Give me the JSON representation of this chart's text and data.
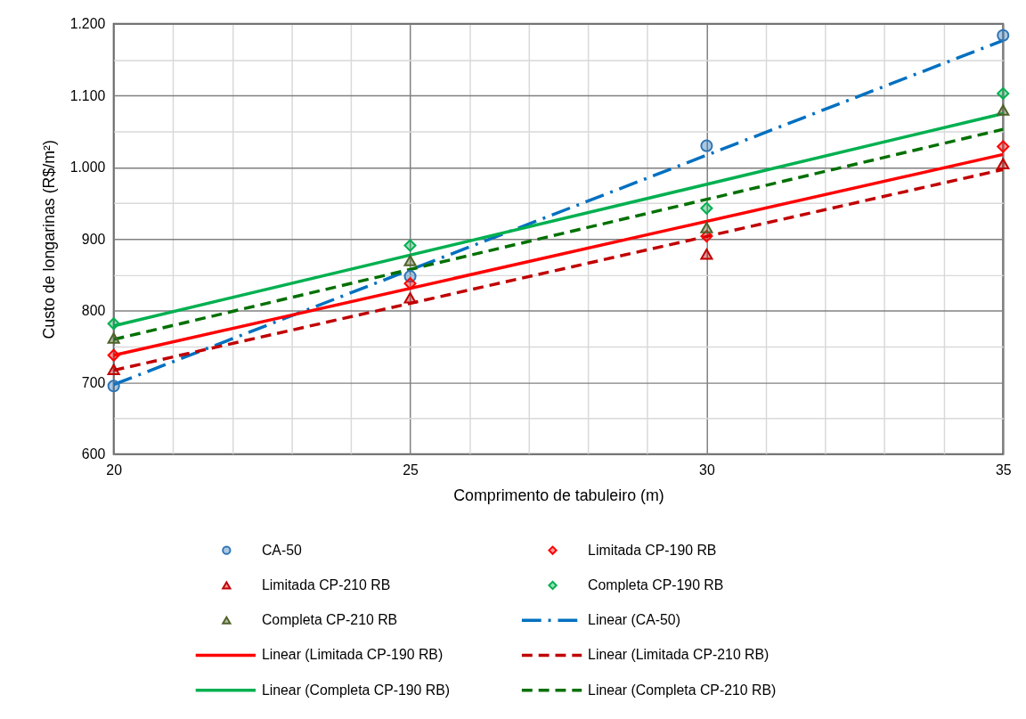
{
  "chart_data": {
    "type": "scatter",
    "xlabel": "Comprimento de tabuleiro (m)",
    "ylabel": "Custo de longarinas (R$/m²)",
    "xlim": [
      20,
      35
    ],
    "ylim": [
      600,
      1200
    ],
    "xticks": [
      20,
      {
        "value": 21,
        "label": null
      },
      {
        "value": 22,
        "label": null
      },
      {
        "value": 23,
        "label": null
      },
      {
        "value": 24,
        "label": null
      },
      25,
      {
        "value": 26,
        "label": null
      },
      {
        "value": 27,
        "label": null
      },
      {
        "value": 28,
        "label": null
      },
      {
        "value": 29,
        "label": null
      },
      30,
      {
        "value": 31,
        "label": null
      },
      {
        "value": 32,
        "label": null
      },
      {
        "value": 33,
        "label": null
      },
      {
        "value": 34,
        "label": null
      },
      35
    ],
    "yticks": [
      600,
      {
        "value": 650,
        "label": null
      },
      700,
      {
        "value": 750,
        "label": null
      },
      800,
      {
        "value": 850,
        "label": null
      },
      900,
      {
        "value": 950,
        "label": null
      },
      {
        "value": 1000,
        "label": "1.000"
      },
      {
        "value": 1050,
        "label": null
      },
      {
        "value": 1100,
        "label": "1.100"
      },
      {
        "value": 1150,
        "label": null
      },
      {
        "value": 1200,
        "label": "1.200"
      }
    ],
    "grid": true,
    "legend": "bottom",
    "series": [
      {
        "name": "CA-50",
        "marker": "circle",
        "color": "#2e75b6",
        "x": [
          20,
          25,
          30,
          35
        ],
        "values": [
          695,
          848,
          1030,
          1184
        ]
      },
      {
        "name": "Limitada CP-190 RB",
        "marker": "diamond",
        "color": "#ff0000",
        "x": [
          20,
          25,
          30,
          35
        ],
        "values": [
          738,
          838,
          904,
          1029
        ]
      },
      {
        "name": "Limitada CP-210 RB",
        "marker": "triangle",
        "color": "#c00000",
        "x": [
          20,
          25,
          30,
          35
        ],
        "values": [
          718,
          818,
          879,
          1005
        ]
      },
      {
        "name": "Completa CP-190 RB",
        "marker": "diamond",
        "color": "#00b050",
        "x": [
          20,
          25,
          30,
          35
        ],
        "values": [
          782,
          891,
          943,
          1103
        ]
      },
      {
        "name": "Completa CP-210 RB",
        "marker": "triangle",
        "color": "#4f6228",
        "x": [
          20,
          25,
          30,
          35
        ],
        "values": [
          762,
          870,
          916,
          1080
        ]
      },
      {
        "name": "Linear (CA-50)",
        "type": "line",
        "line_style": "dashdot",
        "color": "#0070c0",
        "x": [
          20,
          35
        ],
        "values": [
          697,
          1177
        ]
      },
      {
        "name": "Linear (Limitada CP-190 RB)",
        "type": "line",
        "line_style": "solid",
        "color": "#ff0000",
        "x": [
          20,
          35
        ],
        "values": [
          738,
          1018
        ]
      },
      {
        "name": "Linear (Limitada CP-210 RB)",
        "type": "line",
        "line_style": "dashed",
        "color": "#c00000",
        "x": [
          20,
          35
        ],
        "values": [
          717,
          997
        ]
      },
      {
        "name": "Linear (Completa CP-190 RB)",
        "type": "line",
        "line_style": "solid",
        "color": "#00b050",
        "x": [
          20,
          35
        ],
        "values": [
          779,
          1075
        ]
      },
      {
        "name": "Linear (Completa CP-210 RB)",
        "type": "line",
        "line_style": "dashed",
        "color": "#007000",
        "x": [
          20,
          35
        ],
        "values": [
          760,
          1053
        ]
      }
    ]
  }
}
